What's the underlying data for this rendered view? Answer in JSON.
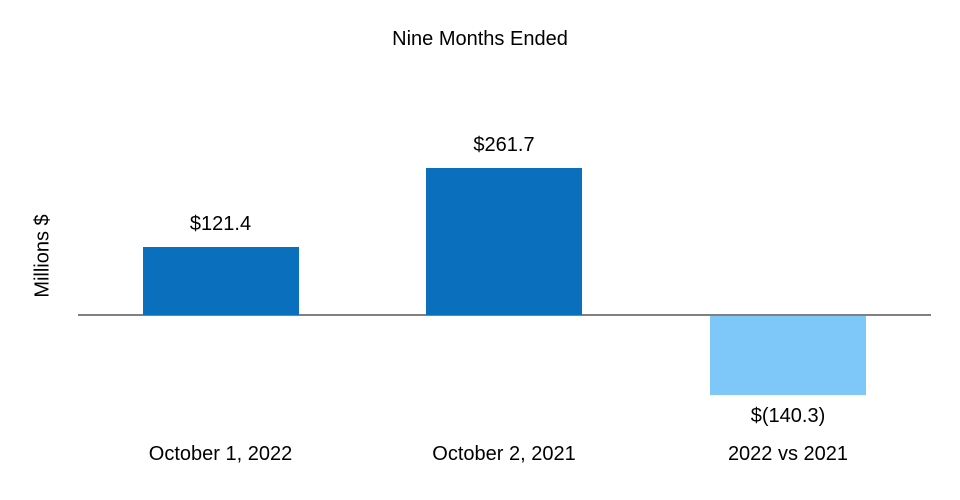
{
  "chart_data": {
    "type": "bar",
    "title": "Nine Months Ended",
    "xlabel": "",
    "ylabel": "Millions $",
    "categories": [
      "October 1, 2022",
      "October 2, 2021",
      "2022 vs 2021"
    ],
    "values": [
      121.4,
      261.7,
      -140.3
    ],
    "data_labels": [
      "$121.4",
      "$261.7",
      "$(140.3)"
    ],
    "series": [
      {
        "name": "Nine Months Ended",
        "values": [
          121.4,
          261.7,
          -140.3
        ]
      }
    ],
    "bar_colors": [
      "#0A6FBD",
      "#0A6FBD",
      "#7EC8F9"
    ],
    "legend": false,
    "grid": false,
    "y_axis_ticks_visible": false,
    "baseline": 0
  },
  "colors": {
    "bar_positive": "#0A6FBD",
    "bar_negative": "#7EC8F9",
    "axis_line": "#808080",
    "text": "#000000",
    "background": "#FFFFFF"
  }
}
